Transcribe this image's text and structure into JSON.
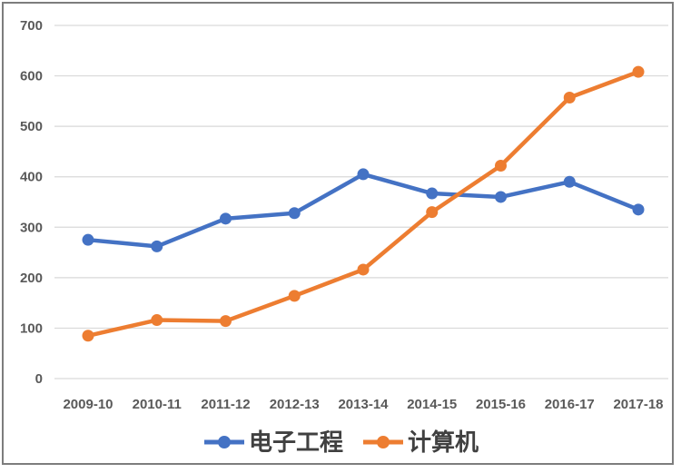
{
  "chart_data": {
    "type": "line",
    "title": "",
    "xlabel": "",
    "ylabel": "",
    "categories": [
      "2009-10",
      "2010-11",
      "2011-12",
      "2012-13",
      "2013-14",
      "2014-15",
      "2015-16",
      "2016-17",
      "2017-18"
    ],
    "series": [
      {
        "name": "电子工程",
        "color": "#4472C4",
        "values": [
          275,
          262,
          317,
          328,
          405,
          367,
          360,
          390,
          335
        ]
      },
      {
        "name": "计算机",
        "color": "#ED7D31",
        "values": [
          85,
          116,
          114,
          164,
          216,
          330,
          422,
          557,
          608
        ]
      }
    ],
    "ylim": [
      0,
      700
    ],
    "yticks": [
      0,
      100,
      200,
      300,
      400,
      500,
      600,
      700
    ],
    "grid": true,
    "legend_position": "bottom",
    "marker": "circle",
    "colors": {
      "gridline": "#d9d9d9",
      "axis_tick_label": "#595959",
      "legend_text": "#404040",
      "frame_border": "#7d7d7d",
      "background": "#ffffff"
    }
  }
}
